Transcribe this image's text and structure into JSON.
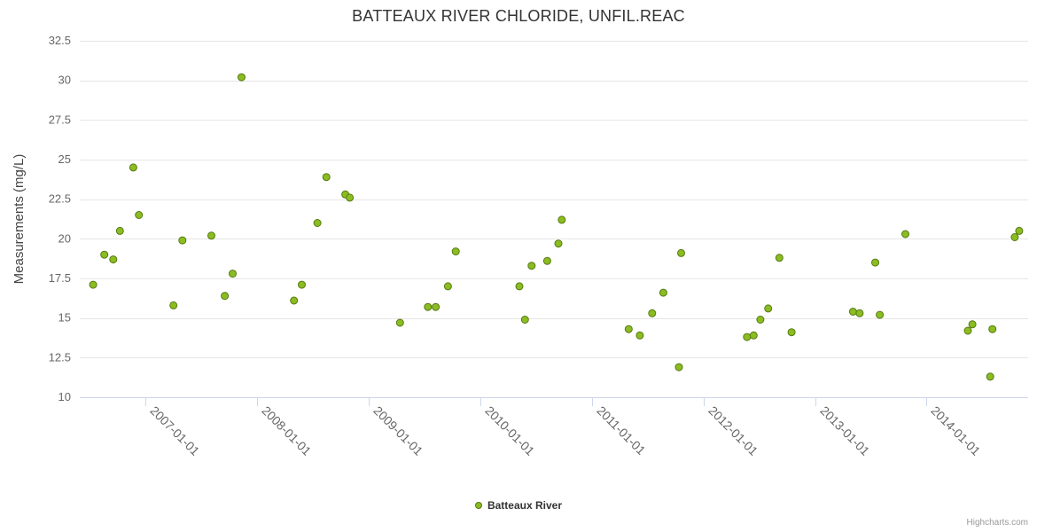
{
  "credits": "Highcharts.com",
  "chart_data": {
    "type": "scatter",
    "title": "BATTEAUX RIVER CHLORIDE, UNFIL.REAC",
    "xlabel": "",
    "ylabel": "Measurements (mg/L)",
    "ylim": [
      10,
      32.5
    ],
    "yticks": [
      "10",
      "12.5",
      "15",
      "17.5",
      "20",
      "22.5",
      "25",
      "27.5",
      "30",
      "32.5"
    ],
    "xlim": [
      2006.41,
      2014.91
    ],
    "xticks": [
      {
        "value": 2007,
        "label": "2007-01-01"
      },
      {
        "value": 2008,
        "label": "2008-01-01"
      },
      {
        "value": 2009,
        "label": "2009-01-01"
      },
      {
        "value": 2010,
        "label": "2010-01-01"
      },
      {
        "value": 2011,
        "label": "2011-01-01"
      },
      {
        "value": 2012,
        "label": "2012-01-01"
      },
      {
        "value": 2013,
        "label": "2013-01-01"
      },
      {
        "value": 2014,
        "label": "2014-01-01"
      }
    ],
    "grid": "horizontal",
    "legend_position": "bottom-center",
    "colors": {
      "point_fill": "#8bbc21",
      "point_stroke": "#567a12",
      "gridline": "#e6e6e6",
      "axis_line": "#ccd6eb",
      "tick_label": "#666666",
      "axis_title": "#444444"
    },
    "series": [
      {
        "name": "Batteaux River",
        "points": [
          {
            "x": 2006.53,
            "y": 17.1
          },
          {
            "x": 2006.63,
            "y": 19.0
          },
          {
            "x": 2006.71,
            "y": 18.7
          },
          {
            "x": 2006.77,
            "y": 20.5
          },
          {
            "x": 2006.89,
            "y": 24.5
          },
          {
            "x": 2006.94,
            "y": 21.5
          },
          {
            "x": 2007.25,
            "y": 15.8
          },
          {
            "x": 2007.33,
            "y": 19.9
          },
          {
            "x": 2007.59,
            "y": 20.2
          },
          {
            "x": 2007.71,
            "y": 16.4
          },
          {
            "x": 2007.78,
            "y": 17.8
          },
          {
            "x": 2007.86,
            "y": 30.2
          },
          {
            "x": 2008.33,
            "y": 16.1
          },
          {
            "x": 2008.4,
            "y": 17.1
          },
          {
            "x": 2008.54,
            "y": 21.0
          },
          {
            "x": 2008.62,
            "y": 23.9
          },
          {
            "x": 2008.79,
            "y": 22.8
          },
          {
            "x": 2008.83,
            "y": 22.6
          },
          {
            "x": 2009.28,
            "y": 14.7
          },
          {
            "x": 2009.53,
            "y": 15.7
          },
          {
            "x": 2009.6,
            "y": 15.7
          },
          {
            "x": 2009.71,
            "y": 17.0
          },
          {
            "x": 2009.78,
            "y": 19.2
          },
          {
            "x": 2010.35,
            "y": 17.0
          },
          {
            "x": 2010.4,
            "y": 14.9
          },
          {
            "x": 2010.46,
            "y": 18.3
          },
          {
            "x": 2010.6,
            "y": 18.6
          },
          {
            "x": 2010.7,
            "y": 19.7
          },
          {
            "x": 2010.73,
            "y": 21.2
          },
          {
            "x": 2011.33,
            "y": 14.3
          },
          {
            "x": 2011.43,
            "y": 13.9
          },
          {
            "x": 2011.54,
            "y": 15.3
          },
          {
            "x": 2011.64,
            "y": 16.6
          },
          {
            "x": 2011.78,
            "y": 11.9
          },
          {
            "x": 2011.8,
            "y": 19.1
          },
          {
            "x": 2012.39,
            "y": 13.8
          },
          {
            "x": 2012.45,
            "y": 13.9
          },
          {
            "x": 2012.51,
            "y": 14.9
          },
          {
            "x": 2012.58,
            "y": 15.6
          },
          {
            "x": 2012.68,
            "y": 18.8
          },
          {
            "x": 2012.79,
            "y": 14.1
          },
          {
            "x": 2013.34,
            "y": 15.4
          },
          {
            "x": 2013.4,
            "y": 15.3
          },
          {
            "x": 2013.54,
            "y": 18.5
          },
          {
            "x": 2013.58,
            "y": 15.2
          },
          {
            "x": 2013.81,
            "y": 20.3
          },
          {
            "x": 2014.37,
            "y": 14.2
          },
          {
            "x": 2014.41,
            "y": 14.6
          },
          {
            "x": 2014.57,
            "y": 11.3
          },
          {
            "x": 2014.59,
            "y": 14.3
          },
          {
            "x": 2014.79,
            "y": 20.1
          },
          {
            "x": 2014.83,
            "y": 20.5
          }
        ]
      }
    ]
  }
}
